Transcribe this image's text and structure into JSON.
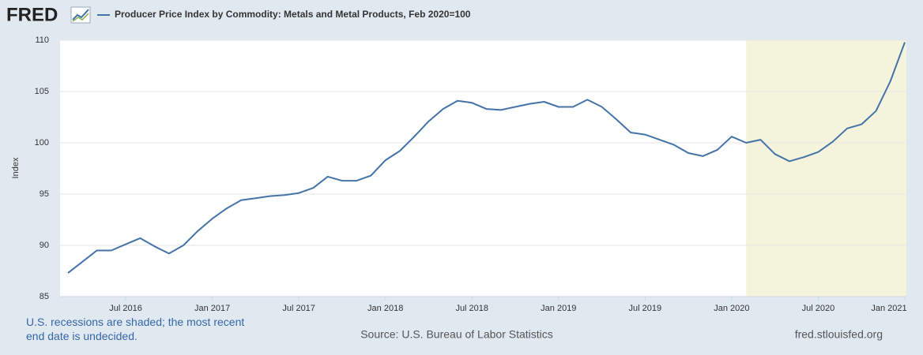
{
  "chart_data": {
    "type": "line",
    "logo": "FRED",
    "ylabel": "Index",
    "x": [
      "2016-03",
      "2016-04",
      "2016-05",
      "2016-06",
      "2016-07",
      "2016-08",
      "2016-09",
      "2016-10",
      "2016-11",
      "2016-12",
      "2017-01",
      "2017-02",
      "2017-03",
      "2017-04",
      "2017-05",
      "2017-06",
      "2017-07",
      "2017-08",
      "2017-09",
      "2017-10",
      "2017-11",
      "2017-12",
      "2018-01",
      "2018-02",
      "2018-03",
      "2018-04",
      "2018-05",
      "2018-06",
      "2018-07",
      "2018-08",
      "2018-09",
      "2018-10",
      "2018-11",
      "2018-12",
      "2019-01",
      "2019-02",
      "2019-03",
      "2019-04",
      "2019-05",
      "2019-06",
      "2019-07",
      "2019-08",
      "2019-09",
      "2019-10",
      "2019-11",
      "2019-12",
      "2020-01",
      "2020-02",
      "2020-03",
      "2020-04",
      "2020-05",
      "2020-06",
      "2020-07",
      "2020-08",
      "2020-09",
      "2020-10",
      "2020-11",
      "2020-12",
      "2021-01"
    ],
    "series": [
      {
        "name": "Producer Price Index by Commodity: Metals and Metal Products, Feb 2020=100",
        "color": "#4572a7",
        "values": [
          87.3,
          88.4,
          89.5,
          89.5,
          90.1,
          90.7,
          89.9,
          89.2,
          90.0,
          91.4,
          92.6,
          93.6,
          94.4,
          94.6,
          94.8,
          94.9,
          95.1,
          95.6,
          96.7,
          96.3,
          96.3,
          96.8,
          98.3,
          99.2,
          100.6,
          102.1,
          103.3,
          104.1,
          103.9,
          103.3,
          103.2,
          103.5,
          103.8,
          104.0,
          103.5,
          103.5,
          104.2,
          103.5,
          102.3,
          101.0,
          100.8,
          100.3,
          99.8,
          99.0,
          98.7,
          99.3,
          100.6,
          100.0,
          100.3,
          98.9,
          98.2,
          98.6,
          99.1,
          100.1,
          101.4,
          101.8,
          103.1,
          106.0,
          109.8
        ]
      }
    ],
    "xlim": [
      "2016-03",
      "2021-01"
    ],
    "xticks": [
      {
        "value": "2016-07",
        "label": "Jul 2016"
      },
      {
        "value": "2017-01",
        "label": "Jan 2017"
      },
      {
        "value": "2017-07",
        "label": "Jul 2017"
      },
      {
        "value": "2018-01",
        "label": "Jan 2018"
      },
      {
        "value": "2018-07",
        "label": "Jul 2018"
      },
      {
        "value": "2019-01",
        "label": "Jan 2019"
      },
      {
        "value": "2019-07",
        "label": "Jul 2019"
      },
      {
        "value": "2020-01",
        "label": "Jan 2020"
      },
      {
        "value": "2020-07",
        "label": "Jul 2020"
      },
      {
        "value": "2021-01",
        "label": "Jan 2021"
      }
    ],
    "ylim": [
      85,
      110
    ],
    "yticks": [
      85,
      90,
      95,
      100,
      105,
      110
    ],
    "grid": true,
    "recessions": [
      {
        "start": "2020-02",
        "end": "2021-01",
        "color": "#f4f4dc"
      }
    ],
    "note": "U.S. recessions are shaded; the most recent end date is undecided.",
    "source": "Source: U.S. Bureau of Labor Statistics",
    "url": "fred.stlouisfed.org"
  }
}
